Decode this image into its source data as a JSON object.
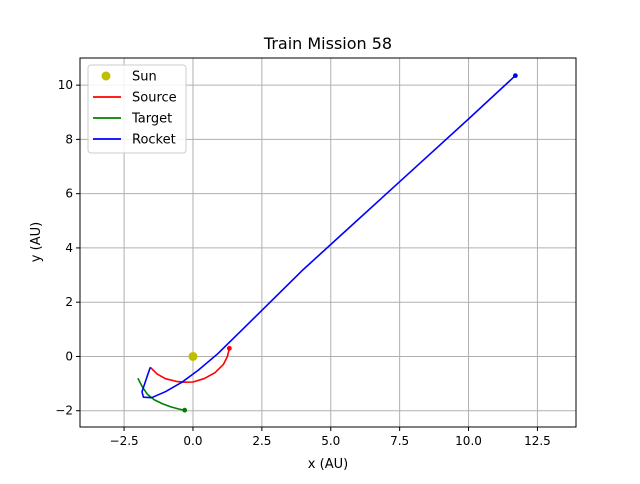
{
  "chart_data": {
    "type": "line",
    "title": "Train Mission 58",
    "xlabel": "x (AU)",
    "ylabel": "y (AU)",
    "xlim": [
      -4.1,
      13.9
    ],
    "ylim": [
      -2.6,
      11.0
    ],
    "xticks": [
      -2.5,
      0.0,
      2.5,
      5.0,
      7.5,
      10.0,
      12.5
    ],
    "xtick_labels": [
      "−2.5",
      "0.0",
      "2.5",
      "5.0",
      "7.5",
      "10.0",
      "12.5"
    ],
    "yticks": [
      -2,
      0,
      2,
      4,
      6,
      8,
      10
    ],
    "ytick_labels": [
      "−2",
      "0",
      "2",
      "4",
      "6",
      "8",
      "10"
    ],
    "grid": true,
    "legend_position": "top-left",
    "legend": [
      {
        "label": "Sun",
        "color": "#bfbf00",
        "kind": "marker"
      },
      {
        "label": "Source",
        "color": "#ff0000",
        "kind": "line"
      },
      {
        "label": "Target",
        "color": "#008000",
        "kind": "line"
      },
      {
        "label": "Rocket",
        "color": "#0000ff",
        "kind": "line"
      }
    ],
    "sun": {
      "x": 0.0,
      "y": 0.0,
      "color": "#bfbf00"
    },
    "series": [
      {
        "name": "Source",
        "color": "#ff0000",
        "points": [
          [
            -1.55,
            -0.4
          ],
          [
            -1.3,
            -0.65
          ],
          [
            -1.0,
            -0.82
          ],
          [
            -0.6,
            -0.92
          ],
          [
            -0.3,
            -0.95
          ],
          [
            0.0,
            -0.94
          ],
          [
            0.4,
            -0.82
          ],
          [
            0.8,
            -0.6
          ],
          [
            1.1,
            -0.3
          ],
          [
            1.25,
            0.0
          ],
          [
            1.32,
            0.3
          ]
        ],
        "end_marker": true
      },
      {
        "name": "Target",
        "color": "#008000",
        "points": [
          [
            -2.0,
            -0.8
          ],
          [
            -1.85,
            -1.1
          ],
          [
            -1.65,
            -1.4
          ],
          [
            -1.4,
            -1.6
          ],
          [
            -1.1,
            -1.75
          ],
          [
            -0.8,
            -1.86
          ],
          [
            -0.5,
            -1.94
          ],
          [
            -0.3,
            -1.98
          ]
        ],
        "end_marker": true
      },
      {
        "name": "Rocket",
        "color": "#0000ff",
        "points": [
          [
            -1.55,
            -0.4
          ],
          [
            -1.7,
            -0.85
          ],
          [
            -1.85,
            -1.3
          ],
          [
            -1.8,
            -1.5
          ],
          [
            -1.5,
            -1.52
          ],
          [
            -1.0,
            -1.3
          ],
          [
            -0.4,
            -0.95
          ],
          [
            0.2,
            -0.5
          ],
          [
            0.9,
            0.1
          ],
          [
            2.0,
            1.2
          ],
          [
            4.0,
            3.2
          ],
          [
            6.0,
            5.05
          ],
          [
            8.0,
            6.9
          ],
          [
            10.0,
            8.75
          ],
          [
            11.7,
            10.35
          ]
        ],
        "end_marker": true
      }
    ]
  }
}
